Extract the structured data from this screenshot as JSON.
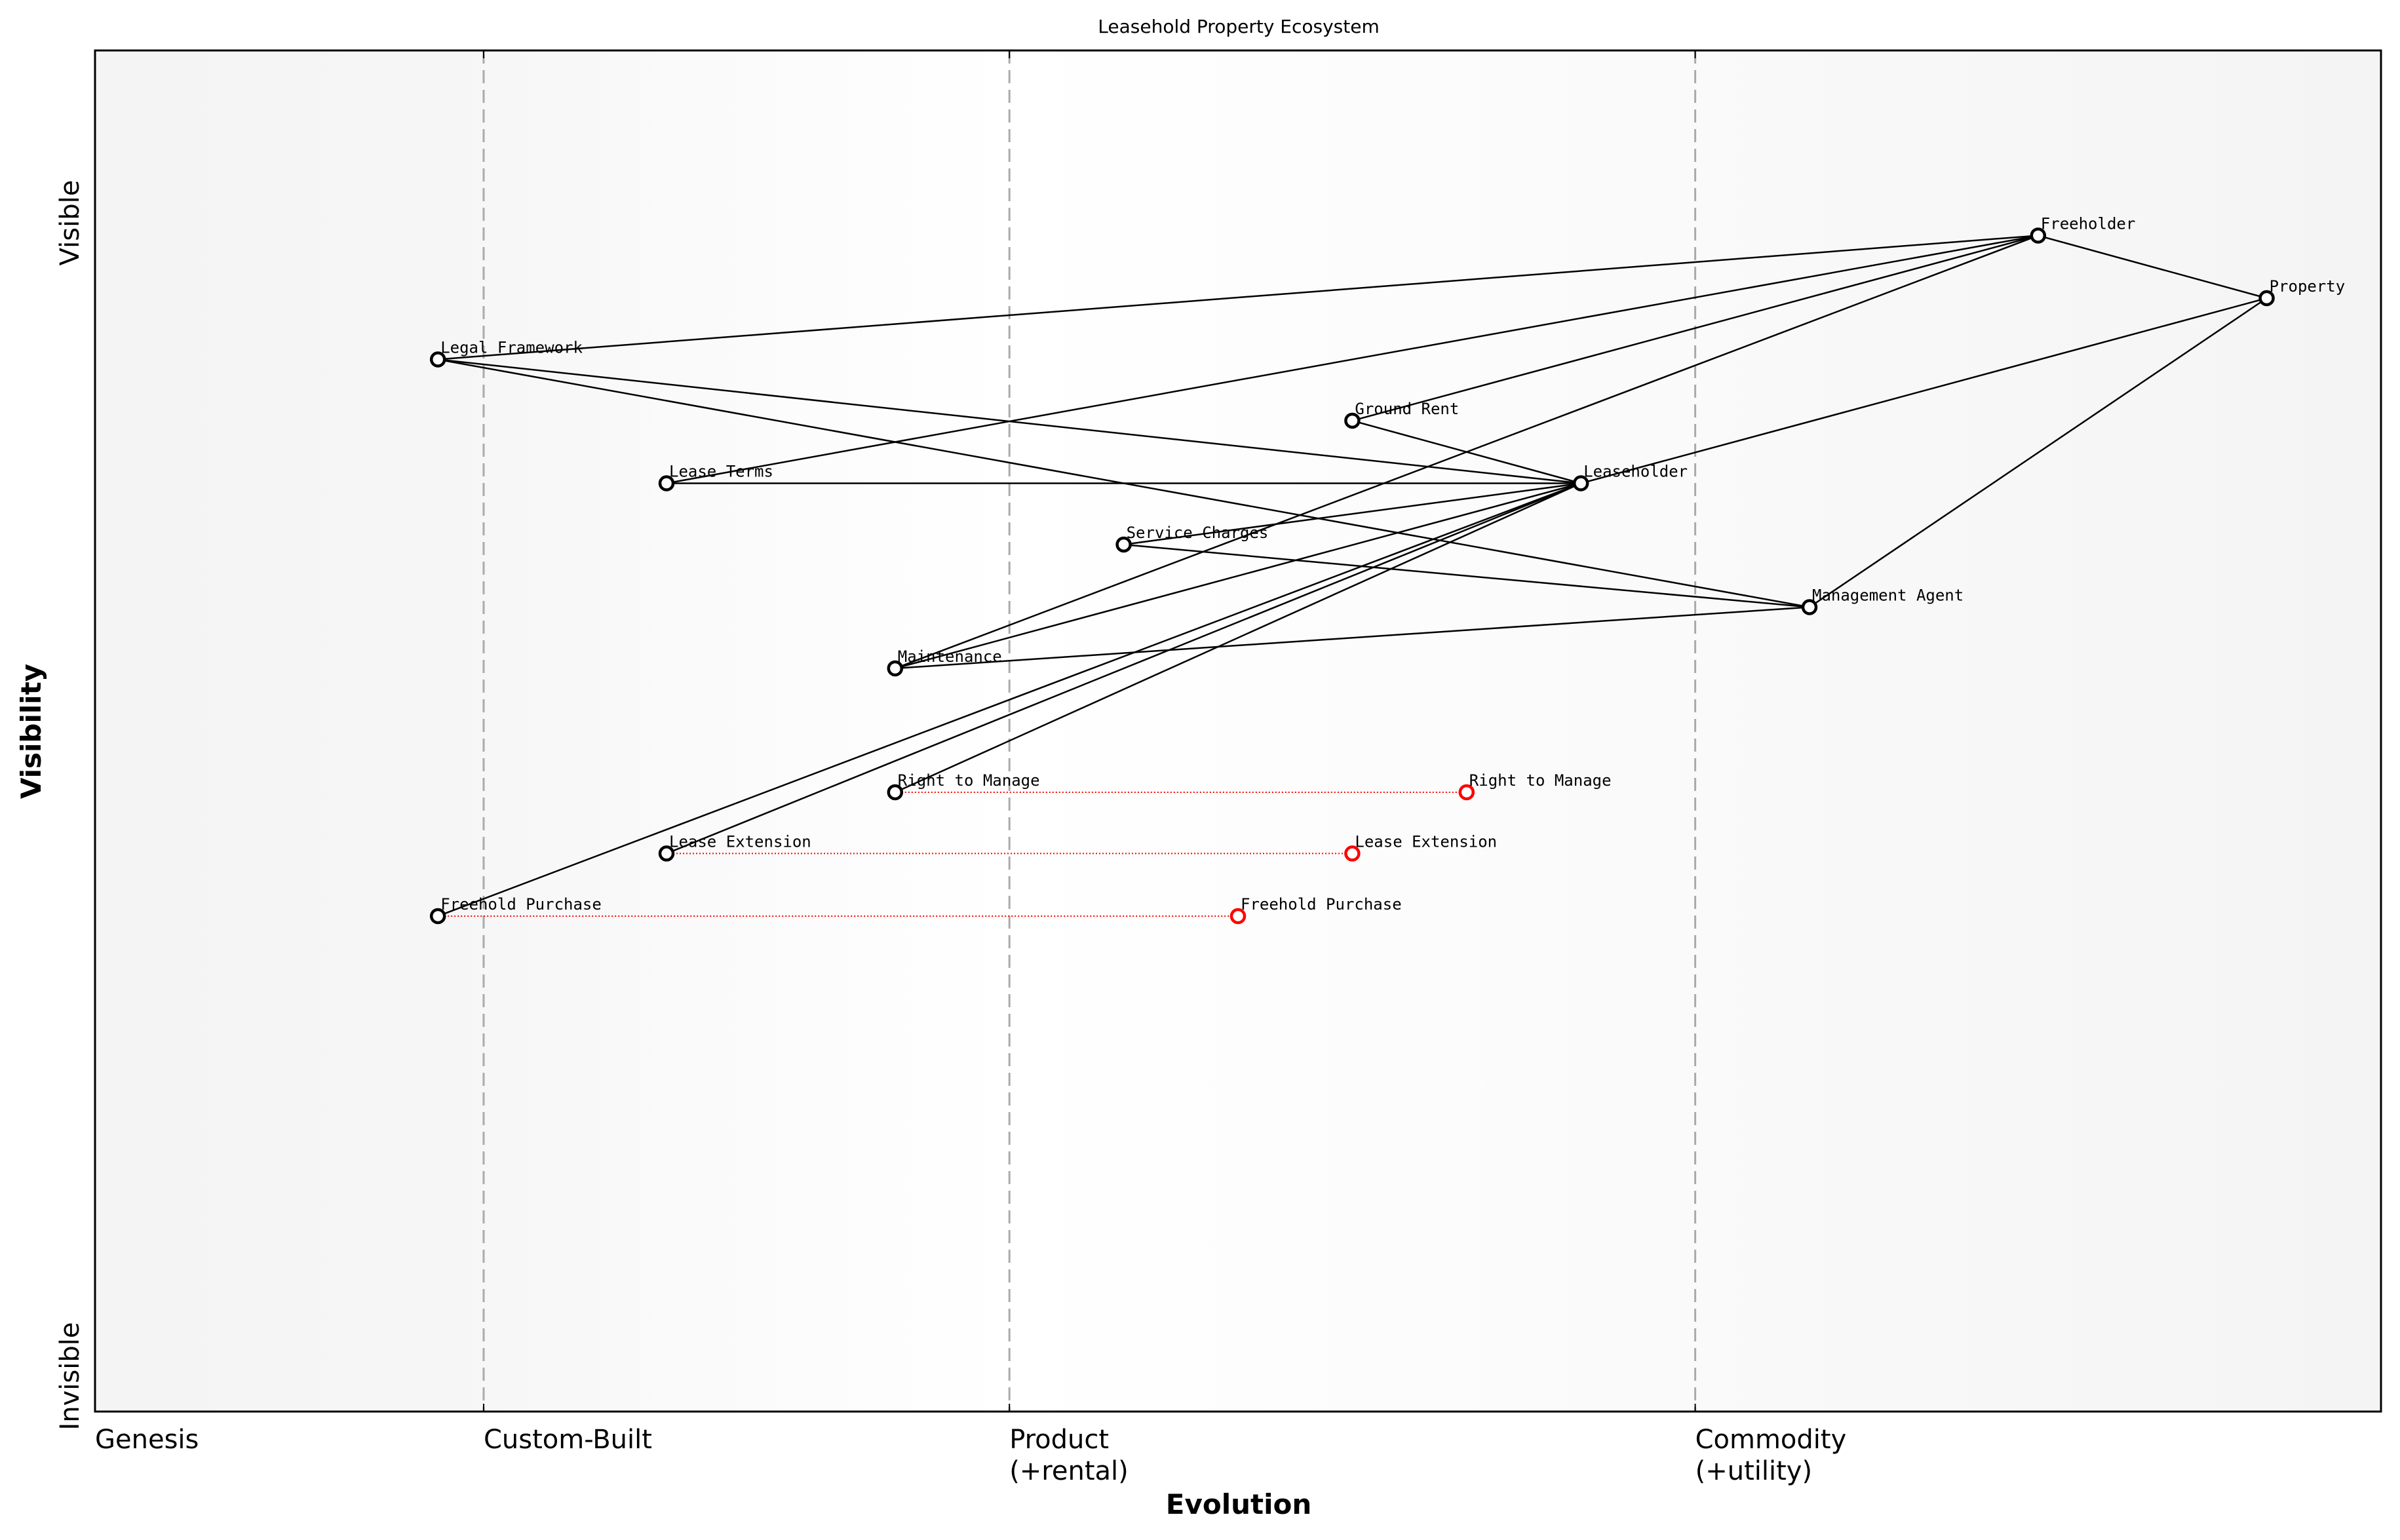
{
  "chart_data": {
    "type": "wardley-map",
    "title": "Leasehold Property Ecosystem",
    "xlabel": "Evolution",
    "ylabel": "Visibility",
    "y_ticks": [
      {
        "label": "Invisible",
        "value": 0
      },
      {
        "label": "Visible",
        "value": 0.9
      }
    ],
    "x_stages": [
      {
        "label": "Genesis",
        "value": 0.0
      },
      {
        "label": "Custom-Built",
        "value": 0.17
      },
      {
        "label": "Product\n(+rental)",
        "value": 0.4
      },
      {
        "label": "Commodity\n(+utility)",
        "value": 0.7
      }
    ],
    "xlim": [
      0,
      1
    ],
    "ylim": [
      0,
      1
    ],
    "components": [
      {
        "name": "Freeholder",
        "evolution": 0.85,
        "visibility": 0.864
      },
      {
        "name": "Property",
        "evolution": 0.95,
        "visibility": 0.818
      },
      {
        "name": "Legal Framework",
        "evolution": 0.15,
        "visibility": 0.773
      },
      {
        "name": "Ground Rent",
        "evolution": 0.55,
        "visibility": 0.728
      },
      {
        "name": "Lease Terms",
        "evolution": 0.25,
        "visibility": 0.682
      },
      {
        "name": "Leaseholder",
        "evolution": 0.65,
        "visibility": 0.682
      },
      {
        "name": "Service Charges",
        "evolution": 0.45,
        "visibility": 0.637
      },
      {
        "name": "Management Agent",
        "evolution": 0.75,
        "visibility": 0.591
      },
      {
        "name": "Maintenance",
        "evolution": 0.35,
        "visibility": 0.546
      },
      {
        "name": "Right to Manage",
        "evolution": 0.35,
        "visibility": 0.455
      },
      {
        "name": "Lease Extension",
        "evolution": 0.25,
        "visibility": 0.41
      },
      {
        "name": "Freehold Purchase",
        "evolution": 0.15,
        "visibility": 0.364
      }
    ],
    "links": [
      [
        "Freeholder",
        "Property"
      ],
      [
        "Freeholder",
        "Legal Framework"
      ],
      [
        "Freeholder",
        "Lease Terms"
      ],
      [
        "Freeholder",
        "Ground Rent"
      ],
      [
        "Freeholder",
        "Maintenance"
      ],
      [
        "Property",
        "Leaseholder"
      ],
      [
        "Property",
        "Management Agent"
      ],
      [
        "Legal Framework",
        "Leaseholder"
      ],
      [
        "Legal Framework",
        "Management Agent"
      ],
      [
        "Ground Rent",
        "Leaseholder"
      ],
      [
        "Lease Terms",
        "Leaseholder"
      ],
      [
        "Service Charges",
        "Leaseholder"
      ],
      [
        "Service Charges",
        "Management Agent"
      ],
      [
        "Maintenance",
        "Leaseholder"
      ],
      [
        "Maintenance",
        "Management Agent"
      ],
      [
        "Leaseholder",
        "Right to Manage"
      ],
      [
        "Leaseholder",
        "Lease Extension"
      ],
      [
        "Leaseholder",
        "Freehold Purchase"
      ]
    ],
    "evolutions": [
      {
        "name": "Right to Manage",
        "from": 0.35,
        "to": 0.6,
        "visibility": 0.455
      },
      {
        "name": "Lease Extension",
        "from": 0.25,
        "to": 0.55,
        "visibility": 0.41
      },
      {
        "name": "Freehold Purchase",
        "from": 0.15,
        "to": 0.5,
        "visibility": 0.364
      }
    ],
    "colors": {
      "node_stroke": "#000000",
      "node_fill": "#ffffff",
      "evolved_stroke": "#ff0000",
      "link": "#000000",
      "evolution_link": "#ff0000",
      "divider": "#aaaaaa",
      "bg_edge": "#f4f4f4",
      "bg_center": "#ffffff"
    },
    "grid": false,
    "legend": null
  }
}
